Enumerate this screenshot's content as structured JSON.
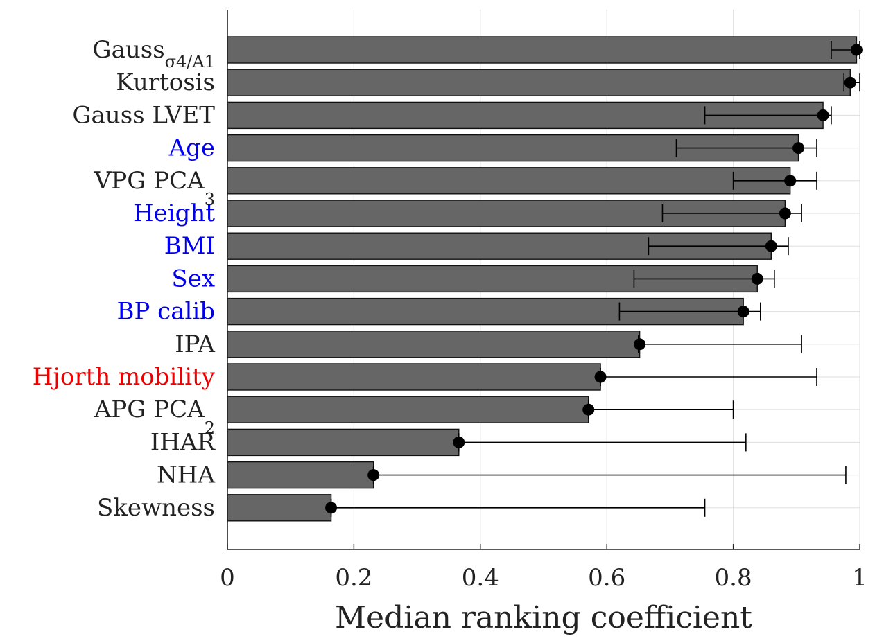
{
  "chart_data": {
    "type": "bar",
    "orientation": "horizontal",
    "xlabel": "Median ranking coefficient",
    "xlim": [
      0,
      1
    ],
    "xticks": [
      0,
      0.2,
      0.4,
      0.6,
      0.8,
      1
    ],
    "xtick_labels": [
      "0",
      "0.2",
      "0.4",
      "0.6",
      "0.8",
      "1"
    ],
    "grid": true,
    "bar_color": "#666666",
    "marker_color": "#000000",
    "categories": [
      {
        "name": "Gauss",
        "sub": "σ4/A1",
        "color": "#222222",
        "value": 0.995,
        "err_low": 0.955,
        "err_high": 1.0
      },
      {
        "name": "Kurtosis",
        "sub": "",
        "color": "#222222",
        "value": 0.985,
        "err_low": 0.975,
        "err_high": 1.0
      },
      {
        "name": "Gauss LVET",
        "sub": "",
        "color": "#222222",
        "value": 0.942,
        "err_low": 0.755,
        "err_high": 0.955
      },
      {
        "name": "Age",
        "sub": "",
        "color": "#0000ee",
        "value": 0.903,
        "err_low": 0.71,
        "err_high": 0.932
      },
      {
        "name": "VPG PCA",
        "sub": "3",
        "color": "#222222",
        "value": 0.89,
        "err_low": 0.8,
        "err_high": 0.932
      },
      {
        "name": "Height",
        "sub": "",
        "color": "#0000ee",
        "value": 0.882,
        "err_low": 0.688,
        "err_high": 0.908
      },
      {
        "name": "BMI",
        "sub": "",
        "color": "#0000ee",
        "value": 0.86,
        "err_low": 0.666,
        "err_high": 0.887
      },
      {
        "name": "Sex",
        "sub": "",
        "color": "#0000ee",
        "value": 0.838,
        "err_low": 0.643,
        "err_high": 0.865
      },
      {
        "name": "BP calib",
        "sub": "",
        "color": "#0000ee",
        "value": 0.816,
        "err_low": 0.62,
        "err_high": 0.843
      },
      {
        "name": "IPA",
        "sub": "",
        "color": "#222222",
        "value": 0.652,
        "err_low": 0.65,
        "err_high": 0.908
      },
      {
        "name": "Hjorth mobility",
        "sub": "",
        "color": "#ee0000",
        "value": 0.59,
        "err_low": 0.59,
        "err_high": 0.932
      },
      {
        "name": "APG PCA",
        "sub": "2",
        "color": "#222222",
        "value": 0.571,
        "err_low": 0.571,
        "err_high": 0.8
      },
      {
        "name": "IHAR",
        "sub": "",
        "color": "#222222",
        "value": 0.366,
        "err_low": 0.366,
        "err_high": 0.82
      },
      {
        "name": "NHA",
        "sub": "",
        "color": "#222222",
        "value": 0.231,
        "err_low": 0.231,
        "err_high": 0.978
      },
      {
        "name": "Skewness",
        "sub": "",
        "color": "#222222",
        "value": 0.164,
        "err_low": 0.164,
        "err_high": 0.755
      }
    ]
  }
}
